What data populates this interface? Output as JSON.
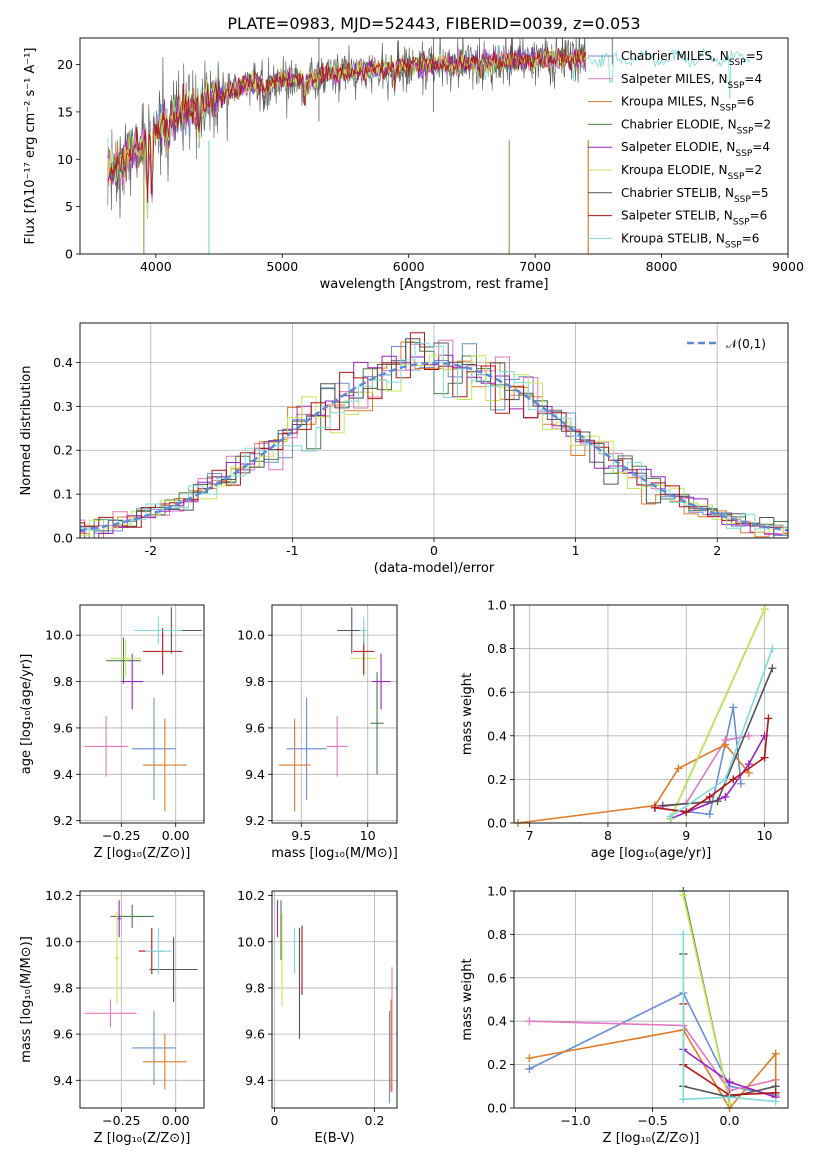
{
  "title": "PLATE=0983, MJD=52443, FIBERID=0039, z=0.053",
  "colors": [
    "#6a8ed8",
    "#e377c2",
    "#e07b27",
    "#4b7d4b",
    "#9c22c4",
    "#c6e65a",
    "#555555",
    "#b01515",
    "#7fdada"
  ],
  "chart_data": [
    {
      "type": "line",
      "name": "spectrum",
      "xlabel": "wavelength [Angstrom, rest frame]",
      "ylabel": "Flux [fλ10⁻¹⁷ erg cm⁻² s⁻¹ A⁻¹]",
      "xlim": [
        3400,
        9000
      ],
      "ylim": [
        0,
        22.8
      ],
      "xticks": [
        4000,
        5000,
        6000,
        7000,
        8000,
        9000
      ],
      "yticks": [
        0,
        5,
        10,
        15,
        20
      ],
      "spectrum": {
        "x": [
          3620,
          3700,
          3800,
          3900,
          4000,
          4100,
          4200,
          4300,
          4400,
          4500,
          4600,
          4700,
          4800,
          4900,
          5000,
          5100,
          5200,
          5300,
          5400,
          5500,
          5600,
          5700,
          5800,
          5900,
          6000,
          6100,
          6200,
          6300,
          6400,
          6500,
          6600,
          6700,
          6800,
          6900,
          7000,
          7100,
          7200,
          7300,
          7400
        ],
        "y": [
          8.5,
          9.5,
          10.5,
          11.5,
          13.0,
          14.3,
          15.0,
          15.2,
          16.0,
          16.8,
          17.2,
          17.8,
          18.0,
          17.8,
          18.3,
          18.5,
          18.3,
          18.6,
          19.0,
          19.2,
          19.3,
          19.4,
          19.5,
          19.6,
          19.8,
          19.9,
          20.0,
          20.0,
          20.1,
          20.2,
          20.3,
          20.3,
          20.4,
          20.4,
          20.5,
          20.5,
          20.6,
          20.6,
          20.7
        ]
      },
      "legend": [
        {
          "name": "Chabrier MILES, N",
          "sub": "SSP",
          "suffix": "=5"
        },
        {
          "name": "Salpeter MILES, N",
          "sub": "SSP",
          "suffix": "=4"
        },
        {
          "name": "Kroupa MILES, N",
          "sub": "SSP",
          "suffix": "=6"
        },
        {
          "name": "Chabrier ELODIE, N",
          "sub": "SSP",
          "suffix": "=2"
        },
        {
          "name": "Salpeter ELODIE, N",
          "sub": "SSP",
          "suffix": "=4"
        },
        {
          "name": "Kroupa ELODIE, N",
          "sub": "SSP",
          "suffix": "=2"
        },
        {
          "name": "Chabrier STELIB, N",
          "sub": "SSP",
          "suffix": "=5"
        },
        {
          "name": "Salpeter STELIB, N",
          "sub": "SSP",
          "suffix": "=6"
        },
        {
          "name": "Kroupa STELIB, N",
          "sub": "SSP",
          "suffix": "=6"
        }
      ],
      "legend_placement": "right"
    },
    {
      "type": "histogram",
      "name": "residuals",
      "xlabel": "(data-model)/error",
      "ylabel": "Normed distribution",
      "xlim": [
        -2.5,
        2.5
      ],
      "ylim": [
        0,
        0.49
      ],
      "xticks": [
        -2,
        -1,
        0,
        1,
        2
      ],
      "yticks": [
        0.0,
        0.1,
        0.2,
        0.3,
        0.4
      ],
      "legend": "𝒩(0,1)",
      "legend_placement": "top-right",
      "bin_edges_start": -2.5,
      "bin_width": 0.1,
      "reference_curve": "gaussian mean 0 sigma 1"
    },
    {
      "type": "errorbar",
      "name": "age-vs-Z",
      "xlabel": "Z [log₁₀(Z/Z⊙)]",
      "ylabel": "age  [log₁₀(age/yr)]",
      "xlim": [
        -0.44,
        0.13
      ],
      "ylim": [
        9.19,
        10.13
      ],
      "xticks": [
        -0.25,
        0.0
      ],
      "xticklabels": [
        "−0.25",
        "0.00"
      ],
      "yticks": [
        9.2,
        9.4,
        9.6,
        9.8,
        10.0
      ],
      "points": [
        {
          "x": -0.1,
          "xerr": 0.1,
          "y": 9.51,
          "yerr": 0.22
        },
        {
          "x": -0.32,
          "xerr": 0.1,
          "y": 9.52,
          "yerr": 0.13
        },
        {
          "x": -0.05,
          "xerr": 0.1,
          "y": 9.44,
          "yerr": 0.2
        },
        {
          "x": -0.24,
          "xerr": 0.08,
          "y": 9.89,
          "yerr": 0.1
        },
        {
          "x": -0.2,
          "xerr": 0.05,
          "y": 9.8,
          "yerr": 0.12
        },
        {
          "x": -0.23,
          "xerr": 0.07,
          "y": 9.9,
          "yerr": 0.08
        },
        {
          "x": -0.02,
          "xerr": 0.14,
          "y": 10.02,
          "yerr": 0.1
        },
        {
          "x": -0.06,
          "xerr": 0.09,
          "y": 9.93,
          "yerr": 0.1
        },
        {
          "x": -0.08,
          "xerr": 0.11,
          "y": 10.02,
          "yerr": 0.06
        }
      ]
    },
    {
      "type": "errorbar",
      "name": "age-vs-mass",
      "xlabel": "mass [log₁₀(M/M⊙)]",
      "ylabel": "",
      "xlim": [
        9.28,
        10.22
      ],
      "ylim": [
        9.19,
        10.13
      ],
      "xticks": [
        9.5,
        10.0
      ],
      "yticks": [
        9.2,
        9.4,
        9.6,
        9.8,
        10.0
      ],
      "points": [
        {
          "x": 9.54,
          "xerr": 0.15,
          "y": 9.51,
          "yerr": 0.22
        },
        {
          "x": 9.77,
          "xerr": 0.08,
          "y": 9.52,
          "yerr": 0.13
        },
        {
          "x": 9.45,
          "xerr": 0.12,
          "y": 9.44,
          "yerr": 0.2
        },
        {
          "x": 10.07,
          "xerr": 0.05,
          "y": 9.62,
          "yerr": 0.22
        },
        {
          "x": 10.1,
          "xerr": 0.07,
          "y": 9.8,
          "yerr": 0.12
        },
        {
          "x": 9.97,
          "xerr": 0.1,
          "y": 9.9,
          "yerr": 0.08
        },
        {
          "x": 9.88,
          "xerr": 0.11,
          "y": 10.02,
          "yerr": 0.1
        },
        {
          "x": 9.97,
          "xerr": 0.08,
          "y": 9.93,
          "yerr": 0.1
        },
        {
          "x": 9.97,
          "xerr": 0.03,
          "y": 10.02,
          "yerr": 0.06
        }
      ]
    },
    {
      "type": "line",
      "name": "mass-weight-vs-age",
      "xlabel": "age  [log₁₀(age/yr)]",
      "ylabel": "mass weight",
      "xlim": [
        6.8,
        10.3
      ],
      "ylim": [
        0,
        1.0
      ],
      "xticks": [
        7,
        8,
        9,
        10
      ],
      "yticks": [
        0.0,
        0.2,
        0.4,
        0.6,
        0.8,
        1.0
      ],
      "series": [
        {
          "x": [
            8.6,
            9.3,
            9.6,
            9.7
          ],
          "y": [
            0.07,
            0.04,
            0.53,
            0.18
          ]
        },
        {
          "x": [
            8.6,
            9.0,
            9.5,
            9.8
          ],
          "y": [
            0.07,
            0.09,
            0.38,
            0.4
          ]
        },
        {
          "x": [
            6.85,
            8.6,
            8.9,
            9.5,
            9.8
          ],
          "y": [
            0.0,
            0.08,
            0.25,
            0.36,
            0.23
          ]
        },
        {
          "x": [
            8.8,
            10.0
          ],
          "y": [
            0.02,
            0.98
          ]
        },
        {
          "x": [
            8.8,
            9.5,
            9.8,
            10.0
          ],
          "y": [
            0.02,
            0.12,
            0.27,
            0.4
          ]
        },
        {
          "x": [
            8.8,
            10.0
          ],
          "y": [
            0.02,
            0.98
          ]
        },
        {
          "x": [
            8.7,
            9.4,
            10.1
          ],
          "y": [
            0.08,
            0.1,
            0.71
          ]
        },
        {
          "x": [
            8.6,
            9.0,
            9.3,
            9.6,
            10.0,
            10.05
          ],
          "y": [
            0.07,
            0.05,
            0.12,
            0.2,
            0.3,
            0.48
          ]
        },
        {
          "x": [
            8.8,
            9.5,
            10.1
          ],
          "y": [
            0.03,
            0.2,
            0.8
          ]
        }
      ]
    },
    {
      "type": "errorbar",
      "name": "mass-vs-Z",
      "xlabel": "Z [log₁₀(Z/Z⊙)]",
      "ylabel": "mass [log₁₀(M/M⊙)]",
      "xlim": [
        -0.44,
        0.13
      ],
      "ylim": [
        9.28,
        10.22
      ],
      "xticks": [
        -0.25,
        0.0
      ],
      "xticklabels": [
        "−0.25",
        "0.00"
      ],
      "yticks": [
        9.4,
        9.6,
        9.8,
        10.0,
        10.2
      ],
      "points": [
        {
          "x": -0.1,
          "xerr": 0.1,
          "y": 9.54,
          "yerr": 0.16
        },
        {
          "x": -0.3,
          "xerr": 0.12,
          "y": 9.69,
          "yerr": 0.06
        },
        {
          "x": -0.05,
          "xerr": 0.1,
          "y": 9.48,
          "yerr": 0.12
        },
        {
          "x": -0.2,
          "xerr": 0.1,
          "y": 10.11,
          "yerr": 0.05
        },
        {
          "x": -0.26,
          "xerr": 0.01,
          "y": 10.1,
          "yerr": 0.08
        },
        {
          "x": -0.27,
          "xerr": 0.01,
          "y": 9.93,
          "yerr": 0.2
        },
        {
          "x": -0.01,
          "xerr": 0.11,
          "y": 9.88,
          "yerr": 0.14
        },
        {
          "x": -0.11,
          "xerr": 0.06,
          "y": 9.96,
          "yerr": 0.1
        },
        {
          "x": -0.08,
          "xerr": 0.06,
          "y": 9.96,
          "yerr": 0.1
        }
      ]
    },
    {
      "type": "errorbar",
      "name": "mass-vs-ebv",
      "xlabel": "E(B-V)",
      "ylabel": "",
      "xlim": [
        -0.005,
        0.245
      ],
      "ylim": [
        9.28,
        10.22
      ],
      "xticks": [
        0.0,
        0.2
      ],
      "yticks": [
        9.4,
        9.6,
        9.8,
        10.0,
        10.2
      ],
      "points": [
        {
          "x": 0.23,
          "xerr": 0.0,
          "y": 9.5,
          "yerr": 0.2
        },
        {
          "x": 0.235,
          "xerr": 0.0,
          "y": 9.62,
          "yerr": 0.27
        },
        {
          "x": 0.233,
          "xerr": 0.0,
          "y": 9.55,
          "yerr": 0.2
        },
        {
          "x": 0.013,
          "xerr": 0.0,
          "y": 10.05,
          "yerr": 0.13
        },
        {
          "x": 0.006,
          "xerr": 0.0,
          "y": 10.1,
          "yerr": 0.08
        },
        {
          "x": 0.015,
          "xerr": 0.0,
          "y": 9.92,
          "yerr": 0.2
        },
        {
          "x": 0.05,
          "xerr": 0.0,
          "y": 9.82,
          "yerr": 0.24
        },
        {
          "x": 0.055,
          "xerr": 0.0,
          "y": 9.92,
          "yerr": 0.15
        },
        {
          "x": 0.04,
          "xerr": 0.0,
          "y": 9.96,
          "yerr": 0.1
        }
      ]
    },
    {
      "type": "line",
      "name": "mass-weight-vs-Z",
      "xlabel": "Z [log₁₀(Z/Z⊙)]",
      "ylabel": "mass weight",
      "xlim": [
        -1.4,
        0.38
      ],
      "ylim": [
        0,
        1.0
      ],
      "xticks": [
        -1.0,
        -0.5,
        0.0
      ],
      "xticklabels": [
        "−1.0",
        "−0.5",
        "0.0"
      ],
      "yticks": [
        0.0,
        0.2,
        0.4,
        0.6,
        0.8,
        1.0
      ],
      "series": [
        {
          "x": [
            -1.3,
            -0.3,
            0.0,
            0.3
          ],
          "y": [
            0.18,
            0.53,
            0.1,
            0.06
          ]
        },
        {
          "x": [
            -1.3,
            -0.3,
            0.0,
            0.3
          ],
          "y": [
            0.4,
            0.38,
            0.08,
            0.13
          ]
        },
        {
          "x": [
            -1.3,
            -0.3,
            0.0,
            0.3,
            0.3
          ],
          "y": [
            0.23,
            0.36,
            0.0,
            0.25,
            0.05
          ]
        },
        {
          "x": [
            -0.3,
            0.0
          ],
          "y": [
            1.0,
            0.02
          ]
        },
        {
          "x": [
            -0.3,
            0.0,
            0.3
          ],
          "y": [
            0.27,
            0.12,
            0.05
          ]
        },
        {
          "x": [
            -0.3,
            0.0
          ],
          "y": [
            0.98,
            0.02
          ]
        },
        {
          "x": [
            -0.3,
            -0.3,
            0.0,
            0.3
          ],
          "y": [
            0.71,
            0.1,
            0.05,
            0.1
          ]
        },
        {
          "x": [
            -0.3,
            -0.3,
            0.0,
            0.3
          ],
          "y": [
            0.48,
            0.2,
            0.06,
            0.07
          ]
        },
        {
          "x": [
            -0.3,
            -0.3,
            0.0,
            0.3
          ],
          "y": [
            0.8,
            0.04,
            0.05,
            0.03
          ]
        }
      ]
    }
  ]
}
